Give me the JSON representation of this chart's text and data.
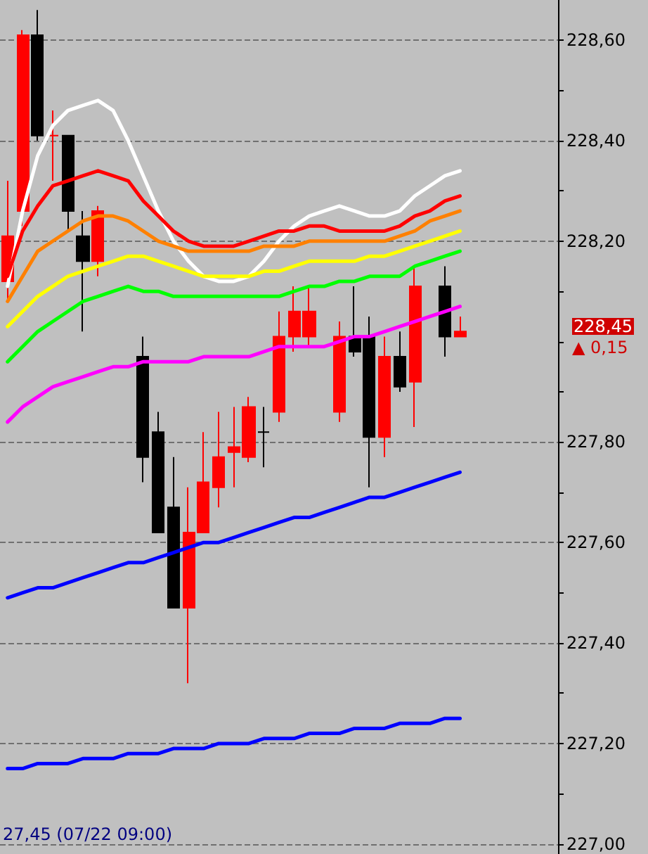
{
  "chart_data": {
    "type": "candlestick",
    "categories": [
      null,
      null,
      null,
      null,
      null,
      null,
      null,
      null,
      null,
      null,
      null,
      null,
      null,
      null,
      null,
      null,
      null,
      null,
      null,
      null,
      null,
      null,
      null,
      null,
      null,
      null,
      null,
      null,
      null,
      null,
      null,
      null,
      null,
      null,
      null,
      null,
      null
    ],
    "ohlc": [
      [
        228.12,
        228.32,
        228.08,
        228.21
      ],
      [
        228.26,
        228.62,
        228.23,
        228.61
      ],
      [
        228.61,
        228.66,
        228.4,
        228.41
      ],
      [
        228.41,
        228.46,
        228.32,
        228.41
      ],
      [
        228.41,
        228.41,
        228.22,
        228.26
      ],
      [
        228.21,
        228.26,
        228.02,
        228.16
      ],
      [
        228.16,
        228.27,
        228.13,
        228.26
      ],
      null,
      null,
      [
        227.97,
        228.01,
        227.72,
        227.77
      ],
      [
        227.82,
        227.86,
        227.62,
        227.62
      ],
      [
        227.67,
        227.77,
        227.47,
        227.47
      ],
      [
        227.47,
        227.71,
        227.32,
        227.62
      ],
      [
        227.62,
        227.82,
        227.62,
        227.72
      ],
      [
        227.71,
        227.86,
        227.67,
        227.77
      ],
      [
        227.78,
        227.87,
        227.71,
        227.79
      ],
      [
        227.77,
        227.89,
        227.76,
        227.87
      ],
      [
        227.82,
        227.87,
        227.75,
        227.82
      ],
      [
        227.86,
        228.06,
        227.84,
        228.01
      ],
      [
        228.01,
        228.11,
        227.98,
        228.06
      ],
      [
        228.01,
        228.11,
        227.99,
        228.06
      ],
      null,
      [
        227.86,
        228.04,
        227.84,
        228.01
      ],
      [
        228.01,
        228.11,
        227.97,
        227.98
      ],
      [
        228.01,
        228.05,
        227.71,
        227.81
      ],
      [
        227.81,
        228.01,
        227.77,
        227.97
      ],
      [
        227.97,
        228.02,
        227.9,
        227.91
      ],
      [
        227.92,
        228.15,
        227.83,
        228.11
      ],
      null,
      [
        228.11,
        228.15,
        227.97,
        228.01
      ],
      [
        228.01,
        228.05,
        228.01,
        228.02
      ],
      null,
      null,
      null,
      null,
      null,
      null
    ],
    "series": [
      {
        "type": "line",
        "color": "#ffffff",
        "values": [
          228.11,
          228.26,
          228.37,
          228.43,
          228.46,
          228.47,
          228.48,
          228.46,
          228.4,
          228.33,
          228.26,
          228.2,
          228.16,
          228.13,
          228.12,
          228.12,
          228.13,
          228.16,
          228.2,
          228.23,
          228.25,
          228.26,
          228.27,
          228.26,
          228.25,
          228.25,
          228.26,
          228.29,
          228.31,
          228.33,
          228.34,
          null,
          null,
          null,
          null,
          null,
          null
        ]
      },
      {
        "type": "line",
        "color": "#ff0000",
        "values": [
          228.13,
          228.22,
          228.27,
          228.31,
          228.32,
          228.33,
          228.34,
          228.33,
          228.32,
          228.28,
          228.25,
          228.22,
          228.2,
          228.19,
          228.19,
          228.19,
          228.2,
          228.21,
          228.22,
          228.22,
          228.23,
          228.23,
          228.22,
          228.22,
          228.22,
          228.22,
          228.23,
          228.25,
          228.26,
          228.28,
          228.29,
          null,
          null,
          null,
          null,
          null,
          null
        ]
      },
      {
        "type": "line",
        "color": "#ff8000",
        "values": [
          228.08,
          228.13,
          228.18,
          228.2,
          228.22,
          228.24,
          228.25,
          228.25,
          228.24,
          228.22,
          228.2,
          228.19,
          228.18,
          228.18,
          228.18,
          228.18,
          228.18,
          228.19,
          228.19,
          228.19,
          228.2,
          228.2,
          228.2,
          228.2,
          228.2,
          228.2,
          228.21,
          228.22,
          228.24,
          228.25,
          228.26,
          null,
          null,
          null,
          null,
          null,
          null
        ]
      },
      {
        "type": "line",
        "color": "#ffff00",
        "values": [
          228.03,
          228.06,
          228.09,
          228.11,
          228.13,
          228.14,
          228.15,
          228.16,
          228.17,
          228.17,
          228.16,
          228.15,
          228.14,
          228.13,
          228.13,
          228.13,
          228.13,
          228.14,
          228.14,
          228.15,
          228.16,
          228.16,
          228.16,
          228.16,
          228.17,
          228.17,
          228.18,
          228.19,
          228.2,
          228.21,
          228.22,
          null,
          null,
          null,
          null,
          null,
          null
        ]
      },
      {
        "type": "line",
        "color": "#00ff00",
        "values": [
          227.96,
          227.99,
          228.02,
          228.04,
          228.06,
          228.08,
          228.09,
          228.1,
          228.11,
          228.1,
          228.1,
          228.09,
          228.09,
          228.09,
          228.09,
          228.09,
          228.09,
          228.09,
          228.09,
          228.1,
          228.11,
          228.11,
          228.12,
          228.12,
          228.13,
          228.13,
          228.13,
          228.15,
          228.16,
          228.17,
          228.18,
          null,
          null,
          null,
          null,
          null,
          null
        ]
      },
      {
        "type": "line",
        "color": "#ff00ff",
        "values": [
          227.84,
          227.87,
          227.89,
          227.91,
          227.92,
          227.93,
          227.94,
          227.95,
          227.95,
          227.96,
          227.96,
          227.96,
          227.96,
          227.97,
          227.97,
          227.97,
          227.97,
          227.98,
          227.99,
          227.99,
          227.99,
          227.99,
          228.0,
          228.01,
          228.01,
          228.02,
          228.03,
          228.04,
          228.05,
          228.06,
          228.07,
          null,
          null,
          null,
          null,
          null,
          null
        ]
      },
      {
        "type": "line",
        "color": "#0000ff",
        "values": [
          227.49,
          227.5,
          227.51,
          227.51,
          227.52,
          227.53,
          227.54,
          227.55,
          227.56,
          227.56,
          227.57,
          227.58,
          227.59,
          227.6,
          227.6,
          227.61,
          227.62,
          227.63,
          227.64,
          227.65,
          227.65,
          227.66,
          227.67,
          227.68,
          227.69,
          227.69,
          227.7,
          227.71,
          227.72,
          227.73,
          227.74,
          null,
          null,
          null,
          null,
          null,
          null
        ]
      },
      {
        "type": "line",
        "color": "#0000ff",
        "values": [
          227.15,
          227.15,
          227.16,
          227.16,
          227.16,
          227.17,
          227.17,
          227.17,
          227.18,
          227.18,
          227.18,
          227.19,
          227.19,
          227.19,
          227.2,
          227.2,
          227.2,
          227.21,
          227.21,
          227.21,
          227.22,
          227.22,
          227.22,
          227.23,
          227.23,
          227.23,
          227.24,
          227.24,
          227.24,
          227.25,
          227.25,
          null,
          null,
          null,
          null,
          null,
          null
        ]
      }
    ],
    "ylim": [
      226.98,
      228.68
    ],
    "yticks": [
      {
        "value": 227.0,
        "label": "227,00"
      },
      {
        "value": 227.1,
        "label": null
      },
      {
        "value": 227.2,
        "label": "227,20"
      },
      {
        "value": 227.3,
        "label": null
      },
      {
        "value": 227.4,
        "label": "227,40"
      },
      {
        "value": 227.5,
        "label": null
      },
      {
        "value": 227.6,
        "label": "227,60"
      },
      {
        "value": 227.7,
        "label": null
      },
      {
        "value": 227.8,
        "label": "227,80"
      },
      {
        "value": 227.9,
        "label": null
      },
      {
        "value": 228.0,
        "label": null
      },
      {
        "value": 228.1,
        "label": null
      },
      {
        "value": 228.2,
        "label": "228,20"
      },
      {
        "value": 228.3,
        "label": null
      },
      {
        "value": 228.4,
        "label": "228,40"
      },
      {
        "value": 228.5,
        "label": null
      },
      {
        "value": 228.6,
        "label": "228,60"
      }
    ],
    "grid": "y",
    "tick_labels": "y",
    "marker": "none",
    "annotations": [
      "228,45",
      "▲ 0,15",
      "27,45 (07/22 09:00)"
    ]
  }
}
